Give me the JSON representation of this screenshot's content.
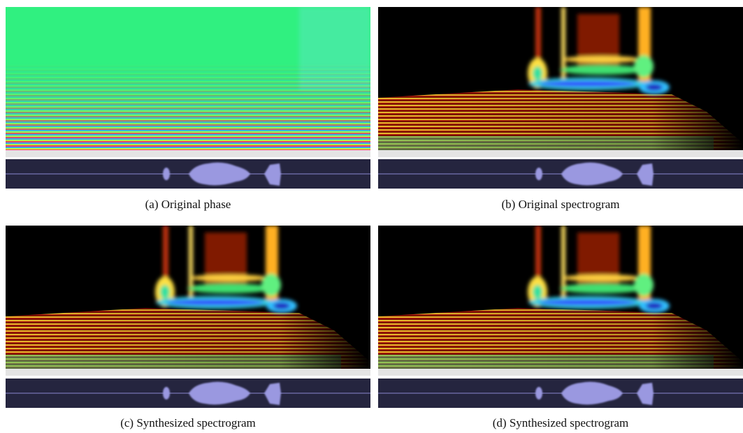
{
  "panels": [
    {
      "caption": "(a) Original phase"
    },
    {
      "caption": "(b) Original spectrogram"
    },
    {
      "caption": "(c) Synthesized spectrogram"
    },
    {
      "caption": "(d) Synthesized spectrogram"
    }
  ]
}
